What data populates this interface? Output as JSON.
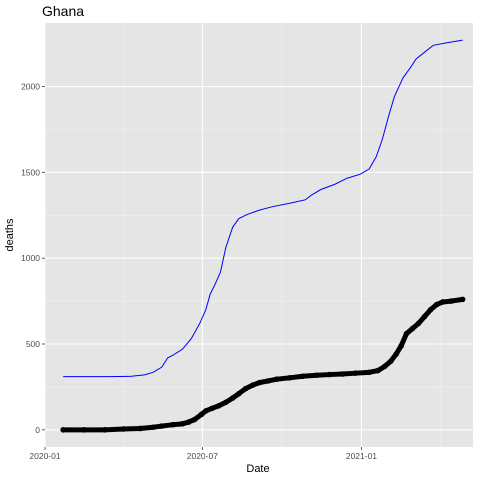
{
  "chart_data": {
    "type": "line",
    "title": "Ghana",
    "xlabel": "Date",
    "ylabel": "deaths",
    "x_axis": {
      "type": "date",
      "range": [
        "2020-01-01",
        "2021-05-10"
      ],
      "ticks": [
        "2020-01-01",
        "2020-07-01",
        "2021-01-01"
      ],
      "tick_labels": [
        "2020-01",
        "2020-07",
        "2021-01"
      ]
    },
    "y_axis": {
      "range": [
        -100,
        2370
      ],
      "ticks": [
        0,
        500,
        1000,
        1500,
        2000
      ],
      "tick_labels": [
        "0",
        "500",
        "1000",
        "1500",
        "2000"
      ]
    },
    "grid": true,
    "panel_background": "#e5e5e5",
    "series": [
      {
        "style": "line",
        "color": "#0000ff",
        "points": [
          [
            "2020-01-22",
            310
          ],
          [
            "2020-02-15",
            310
          ],
          [
            "2020-03-15",
            310
          ],
          [
            "2020-04-10",
            312
          ],
          [
            "2020-04-25",
            320
          ],
          [
            "2020-05-05",
            335
          ],
          [
            "2020-05-15",
            365
          ],
          [
            "2020-05-22",
            420
          ],
          [
            "2020-05-28",
            435
          ],
          [
            "2020-06-08",
            470
          ],
          [
            "2020-06-18",
            530
          ],
          [
            "2020-06-28",
            620
          ],
          [
            "2020-07-05",
            700
          ],
          [
            "2020-07-10",
            790
          ],
          [
            "2020-07-15",
            840
          ],
          [
            "2020-07-22",
            920
          ],
          [
            "2020-07-28",
            1060
          ],
          [
            "2020-08-05",
            1180
          ],
          [
            "2020-08-12",
            1230
          ],
          [
            "2020-08-22",
            1255
          ],
          [
            "2020-09-05",
            1280
          ],
          [
            "2020-09-20",
            1300
          ],
          [
            "2020-10-10",
            1320
          ],
          [
            "2020-10-28",
            1340
          ],
          [
            "2020-11-05",
            1370
          ],
          [
            "2020-11-15",
            1400
          ],
          [
            "2020-12-01",
            1430
          ],
          [
            "2020-12-15",
            1465
          ],
          [
            "2020-12-31",
            1490
          ],
          [
            "2021-01-10",
            1520
          ],
          [
            "2021-01-18",
            1590
          ],
          [
            "2021-01-25",
            1690
          ],
          [
            "2021-02-01",
            1820
          ],
          [
            "2021-02-08",
            1940
          ],
          [
            "2021-02-18",
            2050
          ],
          [
            "2021-02-28",
            2120
          ],
          [
            "2021-03-05",
            2160
          ],
          [
            "2021-03-15",
            2200
          ],
          [
            "2021-03-25",
            2240
          ],
          [
            "2021-04-10",
            2255
          ],
          [
            "2021-04-28",
            2270
          ]
        ]
      },
      {
        "style": "points",
        "color": "#000000",
        "points": [
          [
            "2020-01-22",
            0
          ],
          [
            "2020-02-15",
            0
          ],
          [
            "2020-03-10",
            0
          ],
          [
            "2020-04-01",
            5
          ],
          [
            "2020-04-20",
            8
          ],
          [
            "2020-05-05",
            15
          ],
          [
            "2020-05-15",
            22
          ],
          [
            "2020-05-28",
            30
          ],
          [
            "2020-06-08",
            35
          ],
          [
            "2020-06-15",
            45
          ],
          [
            "2020-06-22",
            60
          ],
          [
            "2020-06-30",
            90
          ],
          [
            "2020-07-05",
            110
          ],
          [
            "2020-07-12",
            125
          ],
          [
            "2020-07-20",
            140
          ],
          [
            "2020-07-28",
            160
          ],
          [
            "2020-08-05",
            185
          ],
          [
            "2020-08-12",
            210
          ],
          [
            "2020-08-20",
            240
          ],
          [
            "2020-08-28",
            260
          ],
          [
            "2020-09-05",
            275
          ],
          [
            "2020-09-15",
            285
          ],
          [
            "2020-09-25",
            295
          ],
          [
            "2020-10-10",
            303
          ],
          [
            "2020-10-25",
            312
          ],
          [
            "2020-11-10",
            318
          ],
          [
            "2020-11-25",
            322
          ],
          [
            "2020-12-10",
            325
          ],
          [
            "2020-12-25",
            330
          ],
          [
            "2021-01-10",
            335
          ],
          [
            "2021-01-20",
            345
          ],
          [
            "2021-01-28",
            370
          ],
          [
            "2021-02-04",
            400
          ],
          [
            "2021-02-10",
            440
          ],
          [
            "2021-02-16",
            490
          ],
          [
            "2021-02-22",
            560
          ],
          [
            "2021-03-01",
            590
          ],
          [
            "2021-03-08",
            620
          ],
          [
            "2021-03-15",
            660
          ],
          [
            "2021-03-22",
            700
          ],
          [
            "2021-03-29",
            730
          ],
          [
            "2021-04-05",
            745
          ],
          [
            "2021-04-15",
            750
          ],
          [
            "2021-04-28",
            760
          ]
        ]
      }
    ]
  }
}
